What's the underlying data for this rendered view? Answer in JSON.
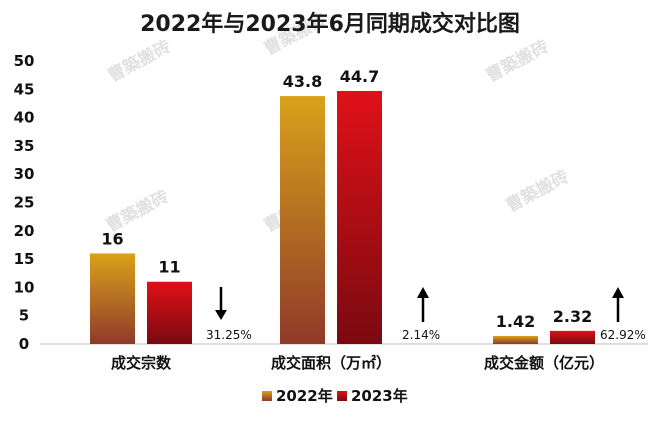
{
  "chart_data": {
    "type": "bar",
    "title": "2022年与2023年6月同期成交对比图",
    "categories": [
      "成交宗数",
      "成交面积（万㎡）",
      "成交金额（亿元）"
    ],
    "series": [
      {
        "name": "2022年",
        "values": [
          16,
          43.8,
          1.42
        ],
        "labels": [
          "16",
          "43.8",
          "1.42"
        ],
        "color": "#c8961e"
      },
      {
        "name": "2023年",
        "values": [
          11,
          44.7,
          2.32
        ],
        "labels": [
          "11",
          "44.7",
          "2.32"
        ],
        "color": "#d0101a"
      }
    ],
    "changes": [
      {
        "text": "31.25%",
        "direction": "down"
      },
      {
        "text": "2.14%",
        "direction": "up"
      },
      {
        "text": "62.92%",
        "direction": "up"
      }
    ],
    "yticks": [
      "0",
      "5",
      "10",
      "15",
      "20",
      "25",
      "30",
      "35",
      "40",
      "45",
      "50"
    ],
    "ylim": [
      0,
      50
    ],
    "legend": "bottom",
    "grid": false
  },
  "watermark": "曹築搬砖"
}
